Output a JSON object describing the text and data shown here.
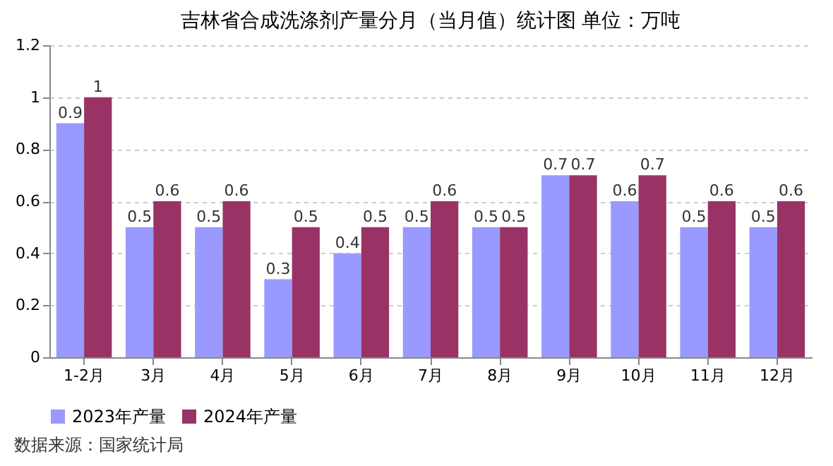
{
  "chart_data": {
    "type": "bar",
    "title": "吉林省合成洗涤剂产量分月（当月值）统计图 单位：万吨",
    "categories": [
      "1-2月",
      "3月",
      "4月",
      "5月",
      "6月",
      "7月",
      "8月",
      "9月",
      "10月",
      "11月",
      "12月"
    ],
    "series": [
      {
        "name": "2023年产量",
        "color": "#9999ff",
        "values": [
          0.9,
          0.5,
          0.5,
          0.3,
          0.4,
          0.5,
          0.5,
          0.7,
          0.6,
          0.5,
          0.5
        ]
      },
      {
        "name": "2024年产量",
        "color": "#993366",
        "values": [
          1,
          0.6,
          0.6,
          0.5,
          0.5,
          0.6,
          0.5,
          0.7,
          0.7,
          0.6,
          0.6
        ]
      }
    ],
    "ylim": [
      0,
      1.2
    ],
    "yticks": [
      0,
      0.2,
      0.4,
      0.6,
      0.8,
      1,
      1.2
    ],
    "grid": "y",
    "legend": "bottom",
    "data_labels": true,
    "annotations": [
      "数据来源：国家统计局"
    ]
  }
}
